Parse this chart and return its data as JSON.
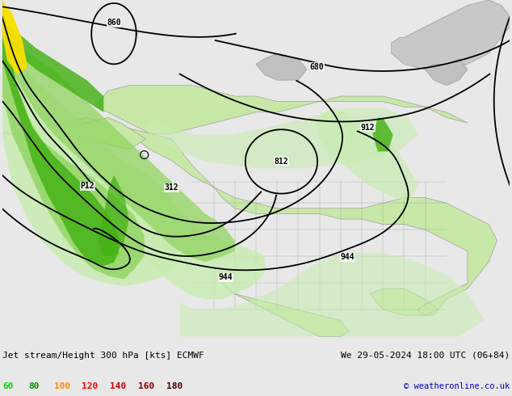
{
  "title_left": "Jet stream/Height 300 hPa [kts] ECMWF",
  "title_right": "We 29-05-2024 18:00 UTC (06+84)",
  "copyright": "© weatheronline.co.uk",
  "legend_values": [
    "60",
    "80",
    "100",
    "120",
    "140",
    "160",
    "180"
  ],
  "legend_colors": [
    "#00dd00",
    "#009900",
    "#ff8800",
    "#ff0000",
    "#cc0000",
    "#880000",
    "#440000"
  ],
  "bg_color": "#e8e8e8",
  "ocean_color": "#dce8dc",
  "land_color": "#c8e8a8",
  "land_border_color": "#909090",
  "arctic_color": "#c8c8c8",
  "jet_light": "#c8ecb0",
  "jet_mid": "#90d460",
  "jet_dark": "#40b010",
  "jet_yellow": "#f8e000",
  "jet_orange": "#ff9900",
  "contour_color": "#000000",
  "fig_width": 6.34,
  "fig_height": 4.9,
  "dpi": 100
}
